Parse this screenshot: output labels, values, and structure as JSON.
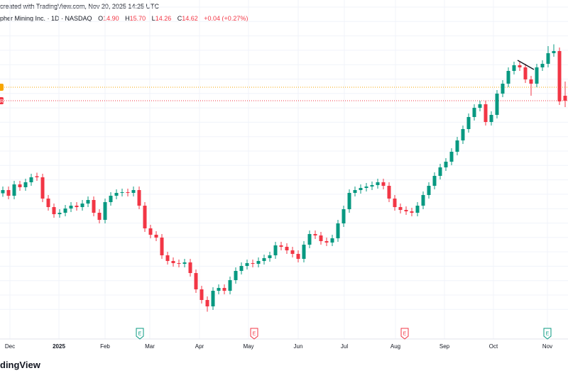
{
  "header": {
    "created": "created with TradingView.com, Nov 20, 2025 14:25 UTC",
    "symbol": "pher Mining Inc. · 1D · NASDAQ",
    "ohlc": {
      "o_label": "O",
      "o": "14.90",
      "h_label": "H",
      "h": "15.70",
      "l_label": "L",
      "l": "14.26",
      "c_label": "C",
      "c": "14.62",
      "change": "+0.04 (+0.27%)"
    }
  },
  "logo": "dingView",
  "colors": {
    "up": "#089981",
    "down": "#f23645",
    "orange_line": "#f7a600",
    "grid": "#f0f3fa"
  },
  "chart_data": {
    "type": "candlestick",
    "ylim": [
      2.1,
      20.3
    ],
    "grid": true,
    "x_tick_labels": [
      "Dec",
      "2025",
      "Feb",
      "Mar",
      "Apr",
      "May",
      "Jun",
      "Jul",
      "Aug",
      "Sep",
      "Oct",
      "Nov"
    ],
    "price_lines": [
      {
        "price": 15.38,
        "color": "#f7a600",
        "style": "dotted",
        "marker": ""
      },
      {
        "price": 14.62,
        "color": "#f23645",
        "style": "dotted",
        "marker": "R"
      }
    ],
    "trend_line": [
      16.9,
      16.38
    ],
    "earnings": [
      {
        "after_label": "Feb",
        "type": "positive",
        "label": "E"
      },
      {
        "after_label": "Apr",
        "type": "negative",
        "label": "E"
      },
      {
        "after_label": "Jul",
        "type": "negative",
        "label": "E"
      },
      {
        "after_label": "Oct",
        "type": "positive",
        "label": "E"
      }
    ],
    "candles": [
      [
        9.4,
        9.78,
        9.2,
        9.58
      ],
      [
        9.58,
        9.78,
        9.06,
        9.26
      ],
      [
        9.26,
        10.1,
        9.06,
        9.9
      ],
      [
        9.9,
        10.1,
        9.54,
        9.74
      ],
      [
        9.74,
        10.22,
        9.54,
        10.02
      ],
      [
        10.02,
        10.5,
        9.82,
        10.3
      ],
      [
        10.36,
        10.56,
        10.1,
        10.3
      ],
      [
        10.3,
        10.5,
        8.9,
        9.1
      ],
      [
        9.1,
        9.3,
        8.42,
        8.62
      ],
      [
        8.62,
        8.82,
        8.02,
        8.22
      ],
      [
        8.22,
        8.5,
        8.02,
        8.3
      ],
      [
        8.3,
        8.74,
        8.1,
        8.54
      ],
      [
        8.54,
        8.9,
        8.34,
        8.7
      ],
      [
        8.7,
        8.9,
        8.42,
        8.62
      ],
      [
        8.62,
        9.02,
        8.42,
        8.82
      ],
      [
        8.82,
        9.22,
        8.62,
        9.02
      ],
      [
        9.02,
        9.22,
        8.1,
        8.3
      ],
      [
        8.3,
        8.5,
        7.7,
        7.9
      ],
      [
        7.9,
        9.1,
        7.7,
        8.9
      ],
      [
        8.9,
        9.46,
        8.7,
        9.26
      ],
      [
        9.26,
        9.62,
        9.06,
        9.42
      ],
      [
        9.42,
        9.66,
        9.22,
        9.46
      ],
      [
        9.46,
        9.66,
        9.22,
        9.42
      ],
      [
        9.42,
        9.78,
        9.22,
        9.58
      ],
      [
        9.58,
        9.78,
        8.5,
        8.7
      ],
      [
        8.7,
        8.9,
        7.22,
        7.42
      ],
      [
        7.42,
        7.62,
        6.86,
        7.06
      ],
      [
        7.06,
        7.26,
        6.7,
        6.9
      ],
      [
        6.9,
        7.1,
        5.7,
        5.9
      ],
      [
        5.9,
        6.1,
        5.38,
        5.58
      ],
      [
        5.58,
        5.78,
        5.26,
        5.46
      ],
      [
        5.46,
        5.66,
        5.22,
        5.42
      ],
      [
        5.42,
        5.7,
        5.22,
        5.5
      ],
      [
        5.5,
        5.7,
        4.7,
        4.9
      ],
      [
        4.9,
        5.1,
        3.78,
        3.98
      ],
      [
        3.98,
        4.18,
        3.18,
        3.38
      ],
      [
        3.38,
        3.58,
        2.72,
        3.02
      ],
      [
        3.02,
        4.1,
        2.82,
        3.9
      ],
      [
        3.9,
        4.26,
        3.7,
        4.06
      ],
      [
        4.06,
        4.26,
        3.7,
        3.9
      ],
      [
        3.9,
        4.7,
        3.7,
        4.5
      ],
      [
        4.5,
        5.22,
        4.3,
        5.02
      ],
      [
        5.02,
        5.5,
        4.82,
        5.3
      ],
      [
        5.3,
        5.66,
        5.1,
        5.46
      ],
      [
        5.46,
        5.66,
        5.22,
        5.42
      ],
      [
        5.42,
        5.78,
        5.22,
        5.58
      ],
      [
        5.58,
        5.94,
        5.38,
        5.74
      ],
      [
        5.74,
        6.1,
        5.54,
        5.9
      ],
      [
        5.9,
        6.66,
        5.7,
        6.46
      ],
      [
        6.46,
        6.66,
        6.18,
        6.38
      ],
      [
        6.38,
        6.58,
        5.98,
        6.18
      ],
      [
        6.18,
        6.38,
        5.78,
        5.98
      ],
      [
        5.98,
        6.18,
        5.5,
        5.7
      ],
      [
        5.7,
        6.7,
        5.5,
        6.5
      ],
      [
        6.5,
        7.3,
        6.3,
        7.1
      ],
      [
        7.1,
        7.3,
        6.82,
        7.02
      ],
      [
        7.02,
        7.22,
        6.5,
        6.7
      ],
      [
        6.7,
        6.9,
        6.42,
        6.62
      ],
      [
        6.62,
        7.06,
        6.42,
        6.86
      ],
      [
        6.86,
        7.9,
        6.66,
        7.7
      ],
      [
        7.7,
        8.7,
        7.5,
        8.5
      ],
      [
        8.5,
        9.62,
        8.3,
        9.42
      ],
      [
        9.42,
        9.78,
        9.22,
        9.58
      ],
      [
        9.58,
        9.9,
        9.38,
        9.7
      ],
      [
        9.7,
        9.98,
        9.5,
        9.78
      ],
      [
        9.78,
        10.06,
        9.58,
        9.86
      ],
      [
        9.86,
        10.22,
        9.66,
        10.02
      ],
      [
        10.02,
        10.22,
        9.62,
        9.82
      ],
      [
        9.82,
        10.02,
        8.9,
        9.1
      ],
      [
        9.1,
        9.3,
        8.42,
        8.62
      ],
      [
        8.62,
        8.82,
        8.26,
        8.46
      ],
      [
        8.46,
        8.66,
        8.18,
        8.38
      ],
      [
        8.38,
        8.58,
        8.1,
        8.3
      ],
      [
        8.3,
        8.9,
        8.1,
        8.7
      ],
      [
        8.7,
        9.5,
        8.5,
        9.3
      ],
      [
        9.3,
        10.02,
        9.1,
        9.82
      ],
      [
        9.82,
        10.58,
        9.62,
        10.38
      ],
      [
        10.38,
        11.06,
        10.18,
        10.86
      ],
      [
        10.86,
        11.38,
        10.66,
        11.18
      ],
      [
        11.18,
        11.94,
        10.98,
        11.74
      ],
      [
        11.74,
        12.58,
        11.54,
        12.38
      ],
      [
        12.38,
        13.22,
        12.18,
        13.02
      ],
      [
        13.02,
        13.9,
        12.82,
        13.7
      ],
      [
        13.7,
        14.42,
        13.5,
        14.22
      ],
      [
        14.22,
        14.62,
        14.02,
        14.42
      ],
      [
        14.42,
        14.62,
        13.22,
        13.42
      ],
      [
        13.42,
        14.02,
        13.22,
        13.82
      ],
      [
        13.82,
        15.22,
        13.62,
        15.02
      ],
      [
        15.02,
        15.78,
        14.82,
        15.58
      ],
      [
        15.58,
        16.5,
        15.38,
        16.3
      ],
      [
        16.3,
        16.82,
        16.1,
        16.62
      ],
      [
        16.62,
        16.82,
        16.3,
        16.5
      ],
      [
        16.5,
        16.7,
        15.62,
        15.82
      ],
      [
        15.82,
        16.02,
        14.9,
        15.58
      ],
      [
        15.58,
        16.7,
        15.38,
        16.5
      ],
      [
        16.5,
        16.9,
        16.3,
        16.7
      ],
      [
        16.7,
        17.7,
        16.5,
        17.3
      ],
      [
        17.3,
        17.8,
        17.1,
        17.42
      ],
      [
        17.42,
        17.62,
        14.38,
        14.58
      ],
      [
        14.9,
        15.7,
        14.26,
        14.62
      ]
    ]
  }
}
